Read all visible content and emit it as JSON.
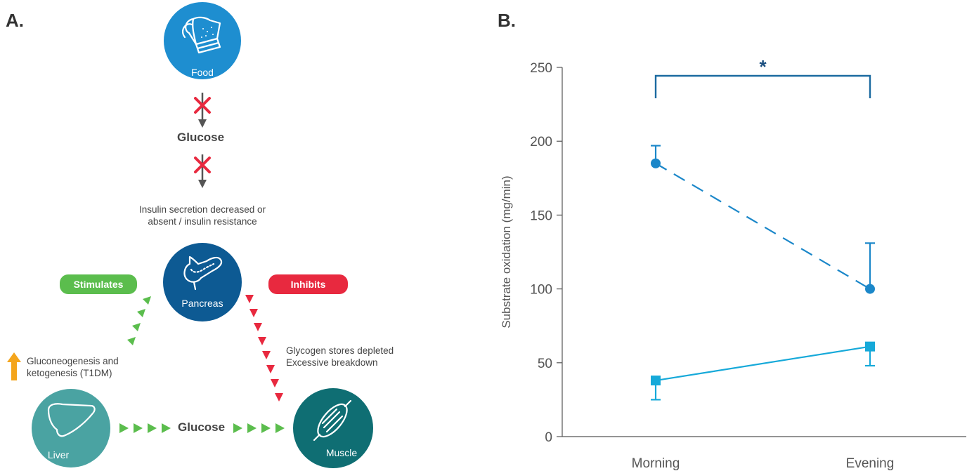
{
  "panel_a": {
    "letter": "A.",
    "food_label": "Food",
    "glucose_top_label": "Glucose",
    "insulin_text_line1": "Insulin secretion decreased or",
    "insulin_text_line2": "absent / insulin resistance",
    "pancreas_label": "Pancreas",
    "stimulates_label": "Stimulates",
    "inhibits_label": "Inhibits",
    "glycogen_line1": "Glycogen stores depleted",
    "glycogen_line2": "Excessive breakdown",
    "gluconeo_line1": "Gluconeogenesis and",
    "gluconeo_line2": "ketogenesis (T1DM)",
    "liver_label": "Liver",
    "glucose_bottom_label": "Glucose",
    "muscle_label": "Muscle",
    "colors": {
      "food_circle": "#1e8ed0",
      "pancreas_circle": "#0d5a93",
      "liver_circle": "#4aa3a2",
      "muscle_circle": "#0f6e73",
      "stimulates": "#5bbd4d",
      "inhibits": "#e8293f",
      "cross": "#e8293f",
      "up_arrow": "#f4a51c"
    }
  },
  "chart_data": {
    "type": "line",
    "panel_letter": "B.",
    "categories": [
      "Morning",
      "Evening"
    ],
    "ylabel": "Substrate oxidation (mg/min)",
    "ylim": [
      0,
      250
    ],
    "yticks": [
      0,
      50,
      100,
      150,
      200,
      250
    ],
    "significance_label": "*",
    "series": [
      {
        "marker": "circle",
        "line_style": "dashed",
        "color": "#1b87c9",
        "values": [
          185,
          100
        ],
        "error_upper": [
          197,
          131
        ],
        "error_direction": "up"
      },
      {
        "marker": "square",
        "line_style": "solid",
        "color": "#16a9d9",
        "values": [
          38,
          61
        ],
        "error_lower": [
          25,
          48
        ],
        "error_direction": "down"
      }
    ],
    "bracket_color": "#1b6aa0"
  }
}
